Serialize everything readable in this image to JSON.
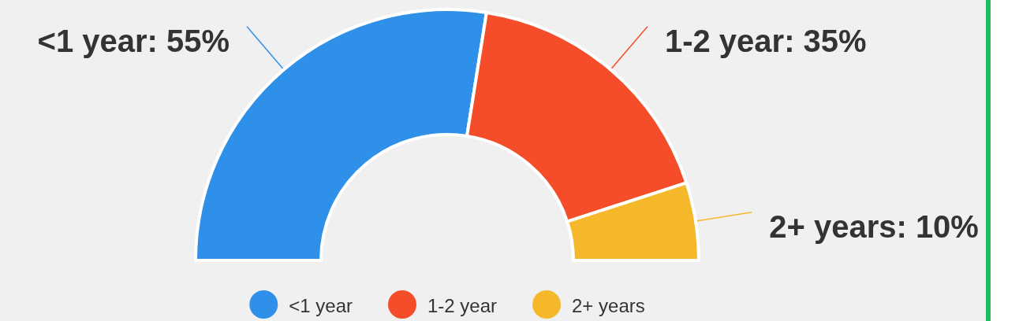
{
  "chart_data": {
    "type": "donut",
    "categories": [
      "<1 year",
      "1-2 year",
      "2+ years"
    ],
    "values": [
      55,
      35,
      10
    ],
    "colors": [
      "#2f90e9",
      "#f54d29",
      "#f5b82a"
    ],
    "value_labels": [
      "<1 year: 55%",
      "1-2 year: 35%",
      "2+ years: 10%"
    ],
    "legend": "bottom"
  }
}
